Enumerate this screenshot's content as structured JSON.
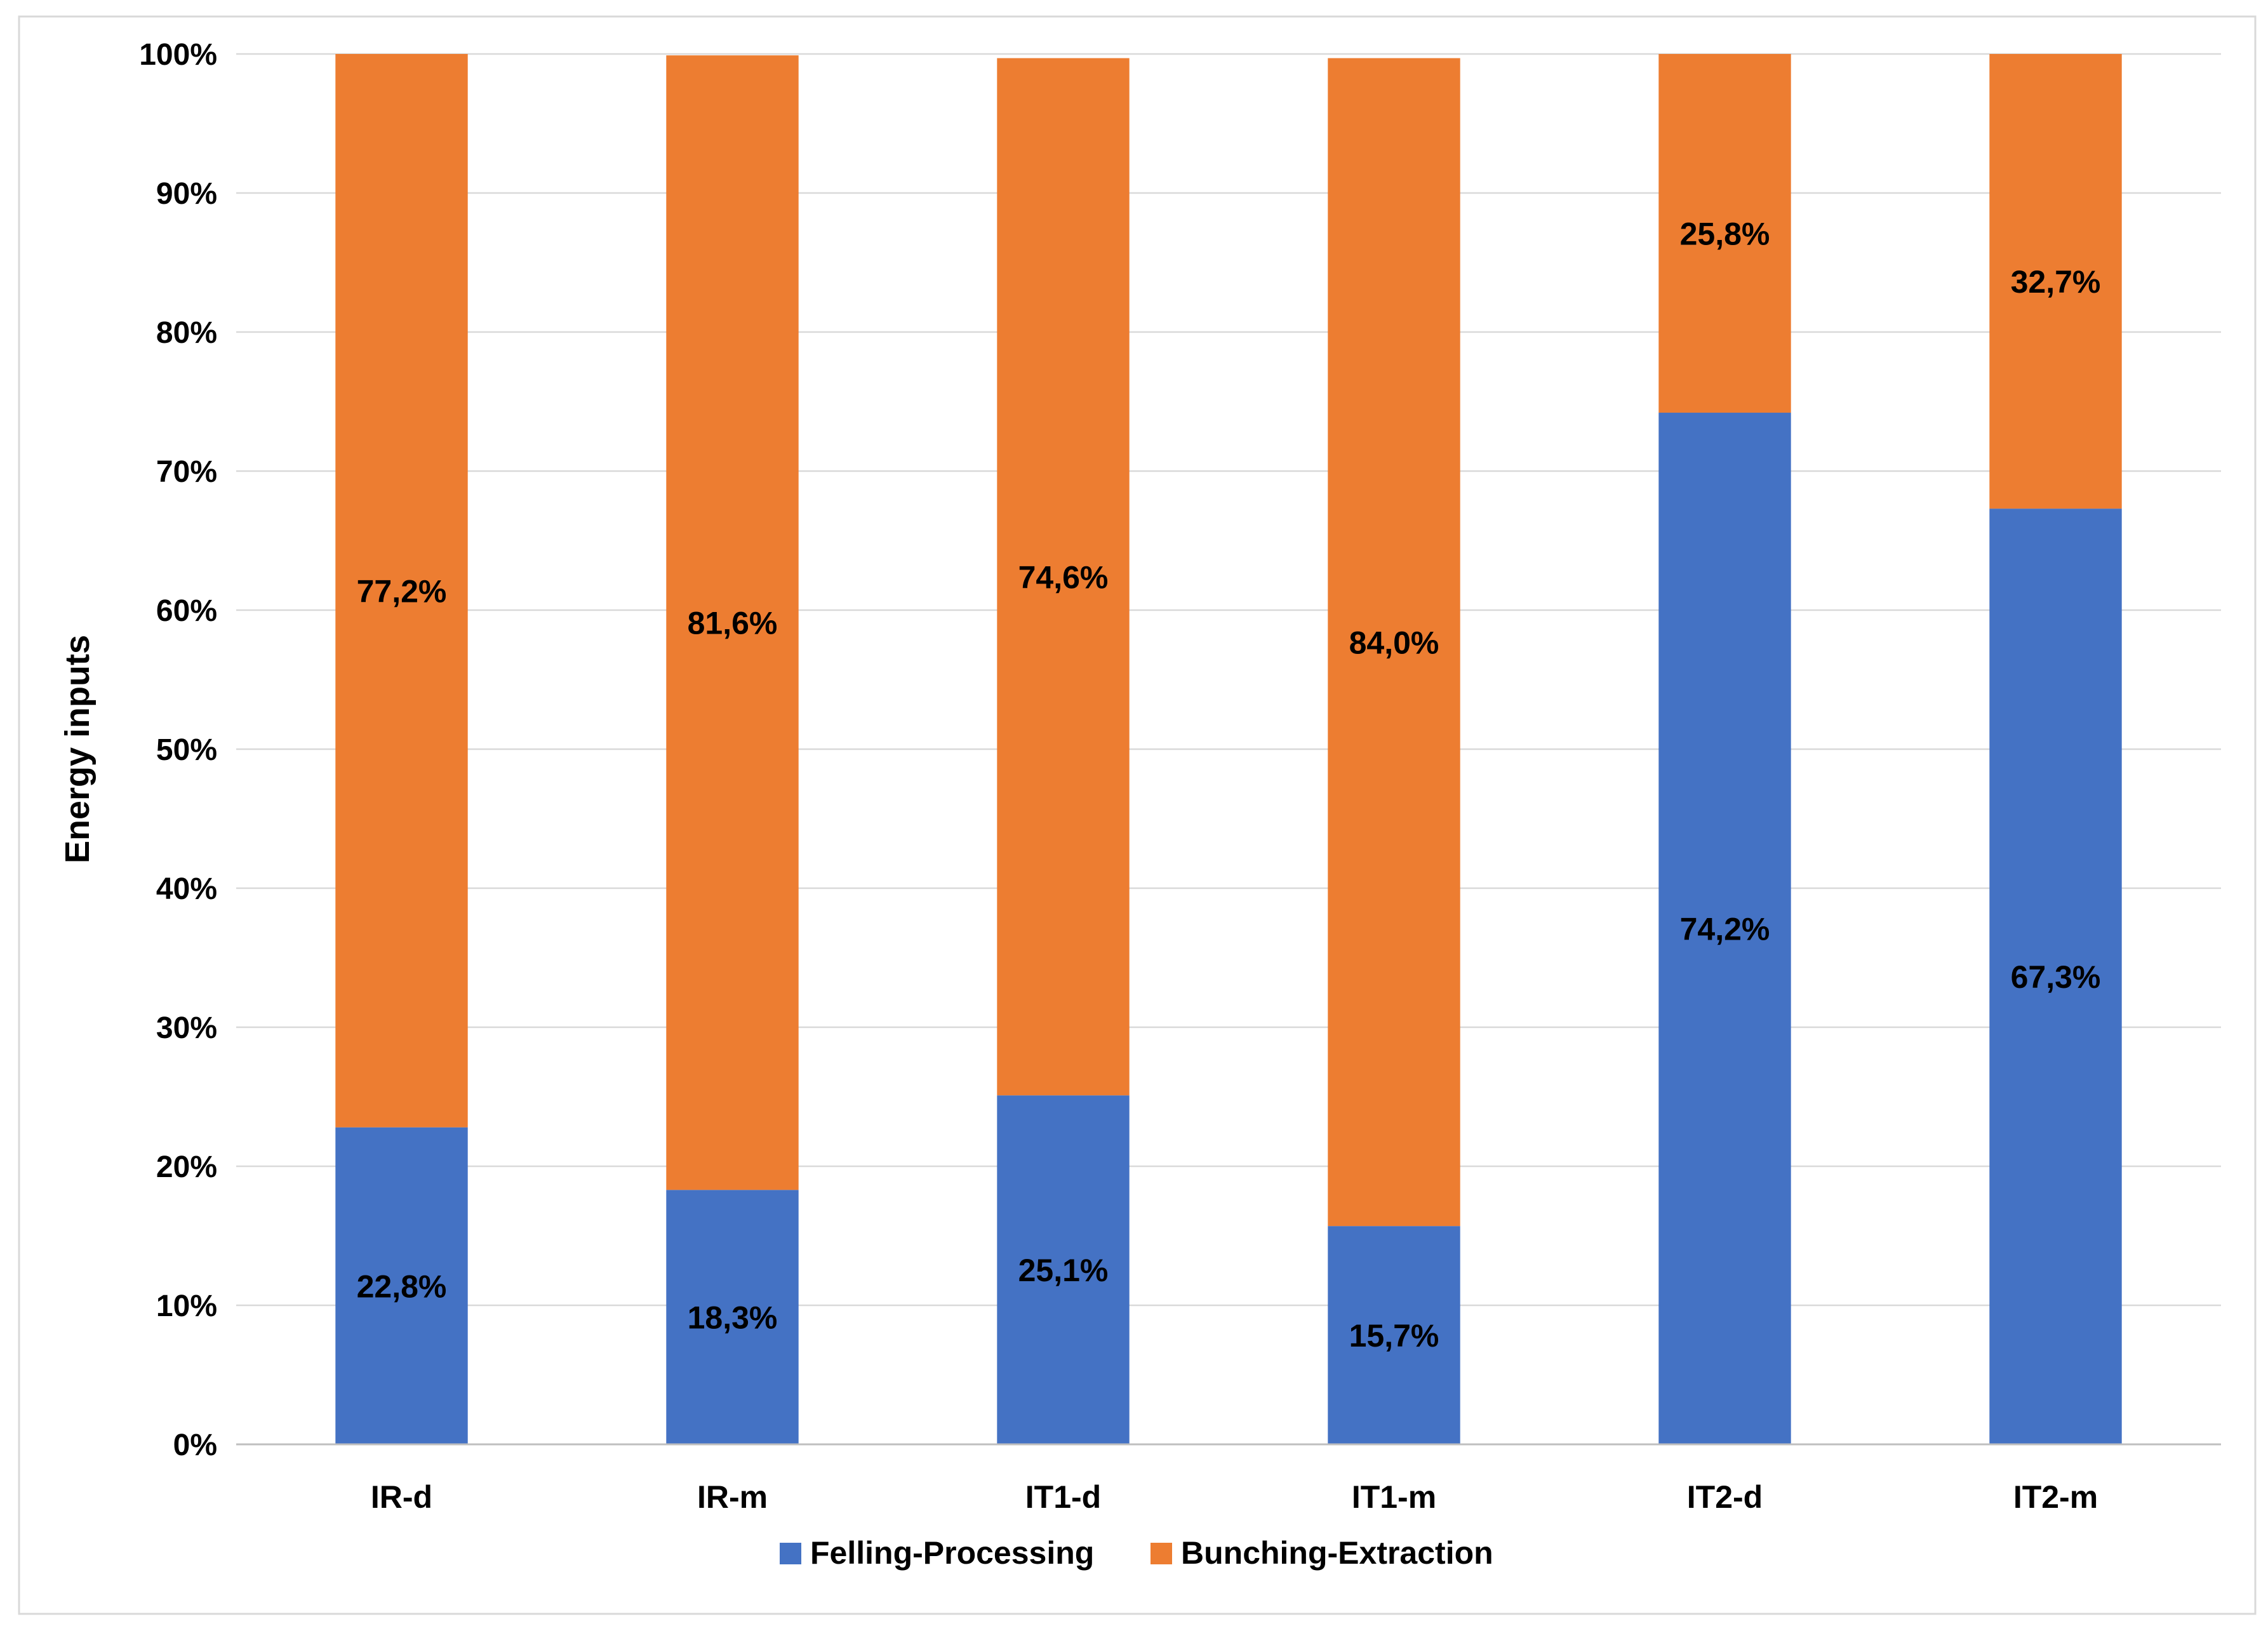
{
  "chart_data": {
    "type": "bar",
    "stacked": true,
    "title": "",
    "xlabel": "",
    "ylabel": "Energy inputs",
    "ylim": [
      0,
      100
    ],
    "y_ticks": [
      "0%",
      "10%",
      "20%",
      "30%",
      "40%",
      "50%",
      "60%",
      "70%",
      "80%",
      "90%",
      "100%"
    ],
    "categories": [
      "IR-d",
      "IR-m",
      "IT1-d",
      "IT1-m",
      "IT2-d",
      "IT2-m"
    ],
    "series": [
      {
        "name": "Felling-Processing",
        "color": "#4472C4",
        "values": [
          22.8,
          18.3,
          25.1,
          15.7,
          74.2,
          67.3
        ],
        "labels": [
          "22,8%",
          "18,3%",
          "25,1%",
          "15,7%",
          "74,2%",
          "67,3%"
        ]
      },
      {
        "name": "Bunching-Extraction",
        "color": "#ED7D31",
        "values": [
          77.2,
          81.6,
          74.6,
          84.0,
          25.8,
          32.7
        ],
        "labels": [
          "77,2%",
          "81,6%",
          "74,6%",
          "84,0%",
          "25,8%",
          "32,7%"
        ]
      }
    ],
    "grid": true,
    "legend_position": "bottom"
  }
}
